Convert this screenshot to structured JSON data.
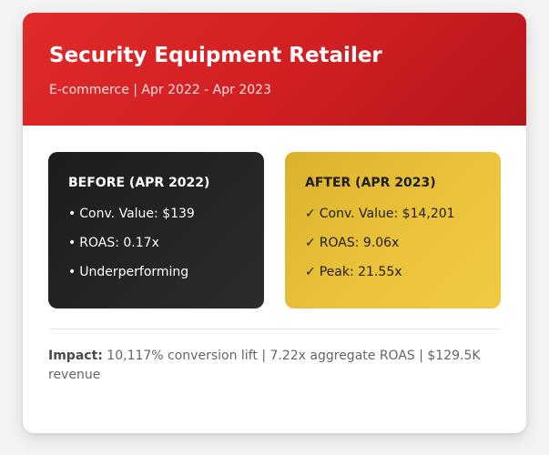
{
  "header": {
    "title": "Security Equipment Retailer",
    "subtitle": "E-commerce | Apr 2022 - Apr 2023"
  },
  "before": {
    "heading": "BEFORE (APR 2022)",
    "bullet_icon": "bullet-icon",
    "items": [
      "Conv. Value: $139",
      "ROAS: 0.17x",
      "Underperforming"
    ]
  },
  "after": {
    "heading": "AFTER (APR 2023)",
    "check_icon": "check-icon",
    "items": [
      "Conv. Value: $14,201",
      "ROAS: 9.06x",
      "Peak: 21.55x"
    ]
  },
  "impact": {
    "label": "Impact:",
    "text": " 10,117% conversion lift | 7.22x aggregate ROAS | $129.5K revenue"
  },
  "colors": {
    "header_red": "#d11f22",
    "before_dark": "#222222",
    "after_gold": "#ebc33b"
  }
}
